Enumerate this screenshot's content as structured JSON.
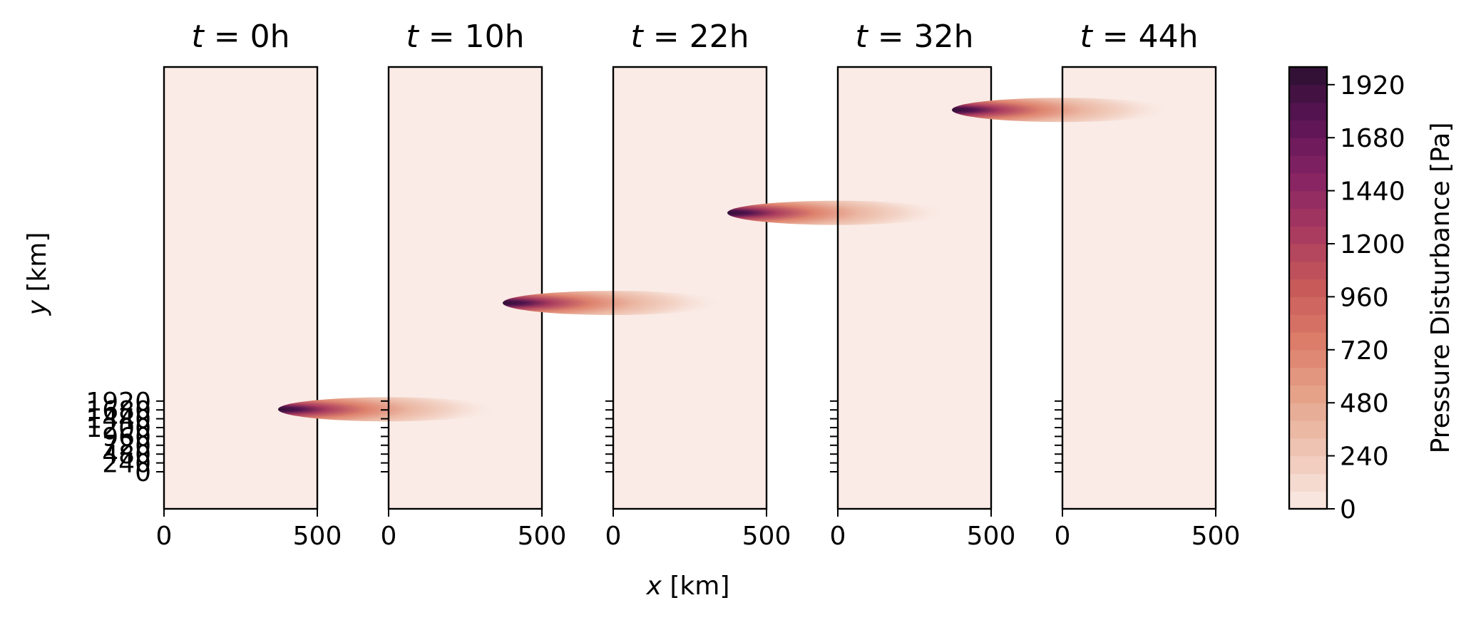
{
  "chart_data": {
    "type": "heatmap",
    "panels": [
      {
        "title_var": "t",
        "title_eq": " = ",
        "title_val": "0h",
        "time_h": 0,
        "peak": {
          "x": 0,
          "y": null,
          "value": 0
        }
      },
      {
        "title_var": "t",
        "title_eq": " = ",
        "title_val": "10h",
        "time_h": 10,
        "peak": {
          "x": 0,
          "y": 1920,
          "value": 2000
        }
      },
      {
        "title_var": "t",
        "title_eq": " = ",
        "title_val": "22h",
        "time_h": 22,
        "peak": {
          "x": 0,
          "y": 4400,
          "value": 2000
        }
      },
      {
        "title_var": "t",
        "title_eq": " = ",
        "title_val": "32h",
        "time_h": 32,
        "peak": {
          "x": 0,
          "y": 6500,
          "value": 2000
        }
      },
      {
        "title_var": "t",
        "title_eq": " = ",
        "title_val": "44h",
        "time_h": 44,
        "peak": {
          "x": 0,
          "y": 8900,
          "value": 2000
        }
      }
    ],
    "xlim": [
      0,
      500
    ],
    "ylim": [
      -400,
      9900
    ],
    "x_ticks": [
      "0",
      "500"
    ],
    "y_ticks": [
      "0",
      "240",
      "480",
      "720",
      "960",
      "1200",
      "1440",
      "1680",
      "1920"
    ],
    "x_label_var": "x",
    "x_label_unit": " [km]",
    "y_label_var": "y",
    "y_label_unit": " [km]",
    "colorbar": {
      "label": "Pressure Disturbance [Pa]",
      "levels": [
        0,
        2000
      ],
      "ticks": [
        "0",
        "240",
        "480",
        "720",
        "960",
        "1200",
        "1440",
        "1680",
        "1920"
      ],
      "colormap": "rocket_r",
      "color_low": "#faebe6",
      "color_high": "#2b1030"
    },
    "grid": false
  }
}
